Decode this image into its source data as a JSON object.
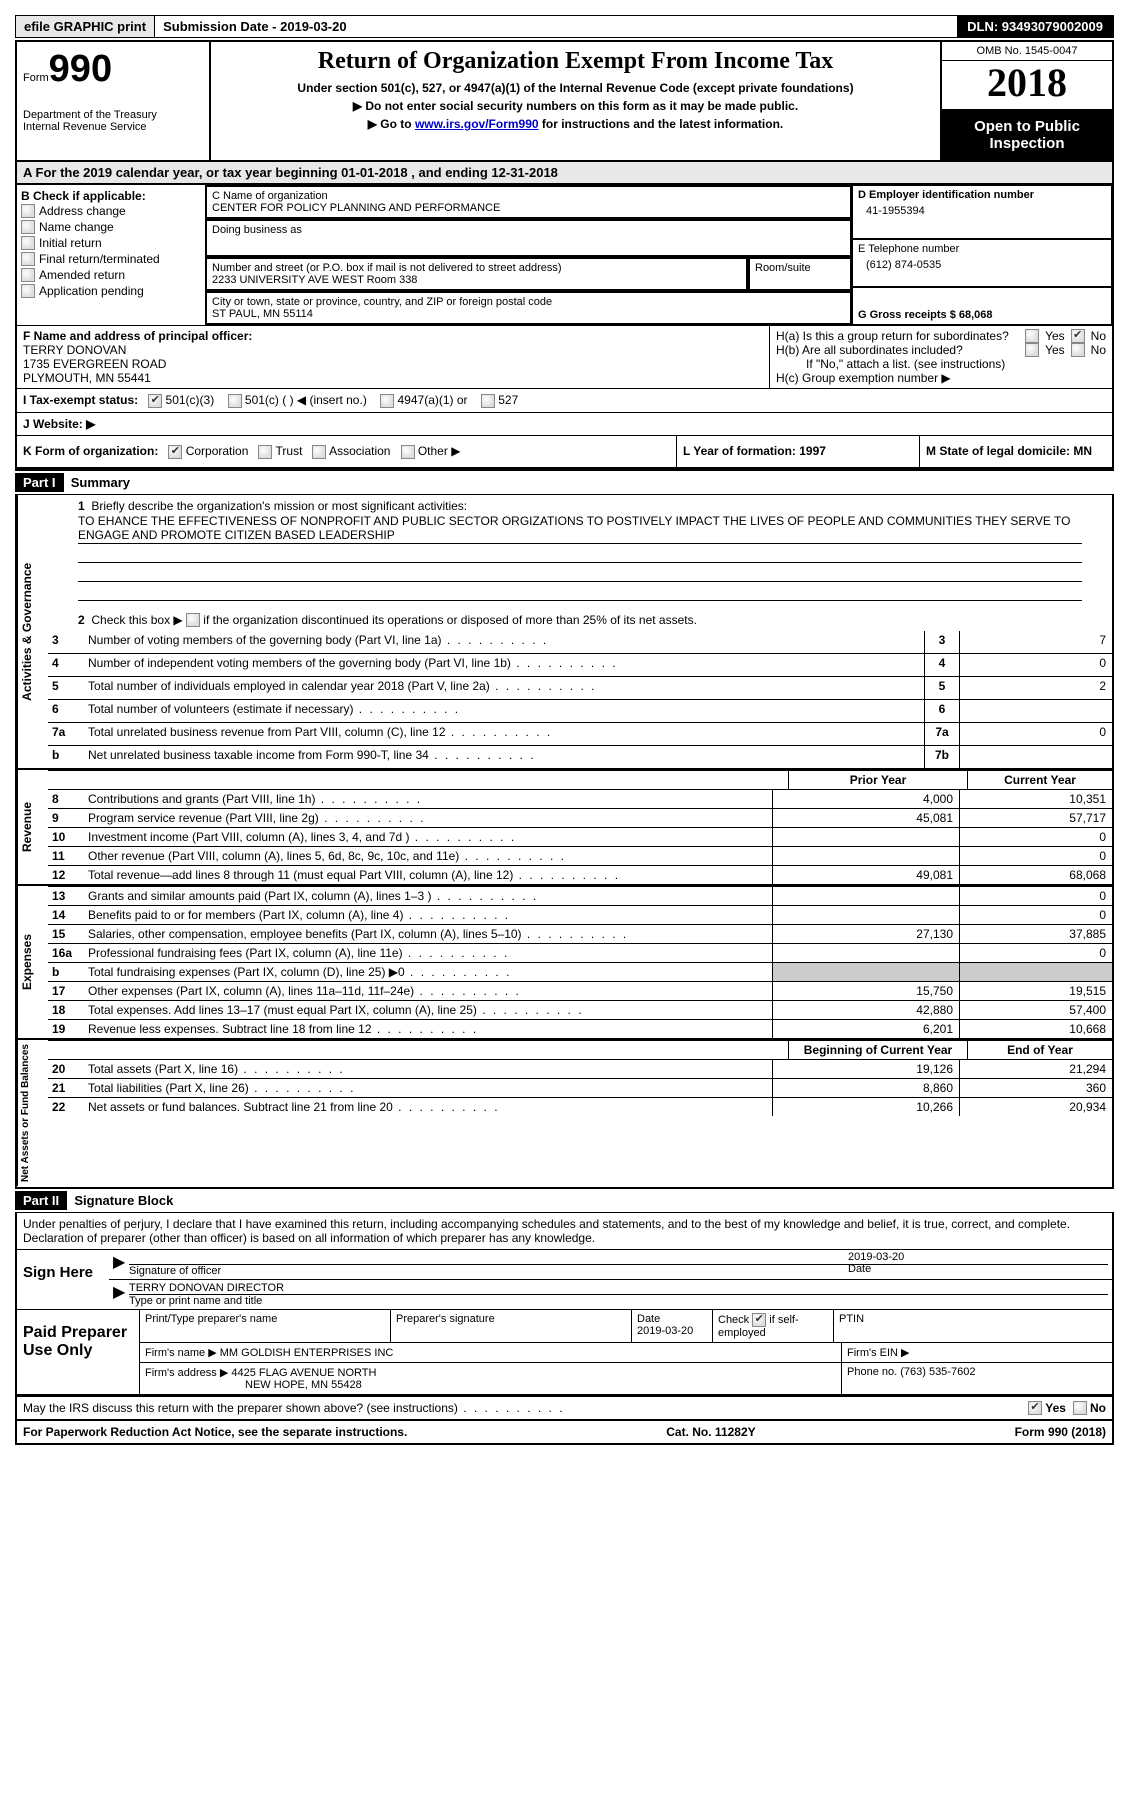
{
  "topbar": {
    "efile": "efile GRAPHIC print",
    "submission_label": "Submission Date - 2019-03-20",
    "dln_label": "DLN: 93493079002009"
  },
  "header": {
    "form_prefix": "Form",
    "form_number": "990",
    "title": "Return of Organization Exempt From Income Tax",
    "subtitle": "Under section 501(c), 527, or 4947(a)(1) of the Internal Revenue Code (except private foundations)",
    "note1": "Do not enter social security numbers on this form as it may be made public.",
    "note2_pre": "Go to ",
    "note2_link": "www.irs.gov/Form990",
    "note2_post": " for instructions and the latest information.",
    "dept1": "Department of the Treasury",
    "dept2": "Internal Revenue Service",
    "omb": "OMB No. 1545-0047",
    "year": "2018",
    "open_public": "Open to Public Inspection"
  },
  "section_a": "A  For the 2019 calendar year, or tax year beginning 01-01-2018   , and ending 12-31-2018",
  "section_b": {
    "title": "B Check if applicable:",
    "items": [
      "Address change",
      "Name change",
      "Initial return",
      "Final return/terminated",
      "Amended return",
      "Application pending"
    ]
  },
  "section_c": {
    "name_label": "C Name of organization",
    "name": "CENTER FOR POLICY PLANNING AND PERFORMANCE",
    "dba_label": "Doing business as",
    "street_label": "Number and street (or P.O. box if mail is not delivered to street address)",
    "room_label": "Room/suite",
    "street": "2233 UNIVERSITY AVE WEST Room 338",
    "city_label": "City or town, state or province, country, and ZIP or foreign postal code",
    "city": "ST PAUL, MN  55114"
  },
  "section_d": {
    "ein_label": "D Employer identification number",
    "ein": "41-1955394",
    "phone_label": "E Telephone number",
    "phone": "(612) 874-0535",
    "gross_label": "G Gross receipts $ 68,068"
  },
  "section_f": {
    "label": "F  Name and address of principal officer:",
    "name": "TERRY DONOVAN",
    "addr1": "1735 EVERGREEN ROAD",
    "addr2": "PLYMOUTH, MN  55441"
  },
  "section_h": {
    "ha": "H(a)  Is this a group return for subordinates?",
    "hb": "H(b)  Are all subordinates included?",
    "hb_note": "If \"No,\" attach a list. (see instructions)",
    "hc": "H(c)  Group exemption number ▶",
    "yes": "Yes",
    "no": "No"
  },
  "section_i": {
    "label": "I  Tax-exempt status:",
    "o1": "501(c)(3)",
    "o2": "501(c) (  ) ◀ (insert no.)",
    "o3": "4947(a)(1) or",
    "o4": "527"
  },
  "section_j": "J  Website: ▶",
  "section_k": {
    "label": "K Form of organization:",
    "o1": "Corporation",
    "o2": "Trust",
    "o3": "Association",
    "o4": "Other ▶"
  },
  "section_l": "L Year of formation: 1997",
  "section_m": "M State of legal domicile: MN",
  "part1": {
    "header": "Part I",
    "title": "Summary",
    "line1_label": "Briefly describe the organization's mission or most significant activities:",
    "mission": "TO EHANCE THE EFFECTIVENESS OF NONPROFIT AND PUBLIC SECTOR ORGIZATIONS TO POSTIVELY IMPACT THE LIVES OF PEOPLE AND COMMUNITIES THEY SERVE TO ENGAGE AND PROMOTE CITIZEN BASED LEADERSHIP",
    "line2": "Check this box ▶     if the organization discontinued its operations or disposed of more than 25% of its net assets.",
    "tabs": {
      "gov": "Activities & Governance",
      "rev": "Revenue",
      "exp": "Expenses",
      "net": "Net Assets or Fund Balances"
    },
    "rows_gov": [
      {
        "n": "3",
        "label": "Number of voting members of the governing body (Part VI, line 1a)",
        "box": "3",
        "val": "7"
      },
      {
        "n": "4",
        "label": "Number of independent voting members of the governing body (Part VI, line 1b)",
        "box": "4",
        "val": "0"
      },
      {
        "n": "5",
        "label": "Total number of individuals employed in calendar year 2018 (Part V, line 2a)",
        "box": "5",
        "val": "2"
      },
      {
        "n": "6",
        "label": "Total number of volunteers (estimate if necessary)",
        "box": "6",
        "val": ""
      },
      {
        "n": "7a",
        "label": "Total unrelated business revenue from Part VIII, column (C), line 12",
        "box": "7a",
        "val": "0"
      },
      {
        "n": "b",
        "label": "Net unrelated business taxable income from Form 990-T, line 34",
        "box": "7b",
        "val": ""
      }
    ],
    "prior_year": "Prior Year",
    "current_year": "Current Year",
    "rows_rev": [
      {
        "n": "8",
        "label": "Contributions and grants (Part VIII, line 1h)",
        "py": "4,000",
        "cy": "10,351"
      },
      {
        "n": "9",
        "label": "Program service revenue (Part VIII, line 2g)",
        "py": "45,081",
        "cy": "57,717"
      },
      {
        "n": "10",
        "label": "Investment income (Part VIII, column (A), lines 3, 4, and 7d )",
        "py": "",
        "cy": "0"
      },
      {
        "n": "11",
        "label": "Other revenue (Part VIII, column (A), lines 5, 6d, 8c, 9c, 10c, and 11e)",
        "py": "",
        "cy": "0"
      },
      {
        "n": "12",
        "label": "Total revenue—add lines 8 through 11 (must equal Part VIII, column (A), line 12)",
        "py": "49,081",
        "cy": "68,068"
      }
    ],
    "rows_exp": [
      {
        "n": "13",
        "label": "Grants and similar amounts paid (Part IX, column (A), lines 1–3 )",
        "py": "",
        "cy": "0"
      },
      {
        "n": "14",
        "label": "Benefits paid to or for members (Part IX, column (A), line 4)",
        "py": "",
        "cy": "0"
      },
      {
        "n": "15",
        "label": "Salaries, other compensation, employee benefits (Part IX, column (A), lines 5–10)",
        "py": "27,130",
        "cy": "37,885"
      },
      {
        "n": "16a",
        "label": "Professional fundraising fees (Part IX, column (A), line 11e)",
        "py": "",
        "cy": "0"
      },
      {
        "n": "b",
        "label": "Total fundraising expenses (Part IX, column (D), line 25) ▶0",
        "py": "SHADE",
        "cy": "SHADE"
      },
      {
        "n": "17",
        "label": "Other expenses (Part IX, column (A), lines 11a–11d, 11f–24e)",
        "py": "15,750",
        "cy": "19,515"
      },
      {
        "n": "18",
        "label": "Total expenses. Add lines 13–17 (must equal Part IX, column (A), line 25)",
        "py": "42,880",
        "cy": "57,400"
      },
      {
        "n": "19",
        "label": "Revenue less expenses. Subtract line 18 from line 12",
        "py": "6,201",
        "cy": "10,668"
      }
    ],
    "begin_year": "Beginning of Current Year",
    "end_year": "End of Year",
    "rows_net": [
      {
        "n": "20",
        "label": "Total assets (Part X, line 16)",
        "py": "19,126",
        "cy": "21,294"
      },
      {
        "n": "21",
        "label": "Total liabilities (Part X, line 26)",
        "py": "8,860",
        "cy": "360"
      },
      {
        "n": "22",
        "label": "Net assets or fund balances. Subtract line 21 from line 20",
        "py": "10,266",
        "cy": "20,934"
      }
    ]
  },
  "part2": {
    "header": "Part II",
    "title": "Signature Block",
    "declare": "Under penalties of perjury, I declare that I have examined this return, including accompanying schedules and statements, and to the best of my knowledge and belief, it is true, correct, and complete. Declaration of preparer (other than officer) is based on all information of which preparer has any knowledge.",
    "sign_here": "Sign Here",
    "sig_officer": "Signature of officer",
    "date_label": "Date",
    "date": "2019-03-20",
    "officer_name": "TERRY DONOVAN  DIRECTOR",
    "type_name": "Type or print name and title",
    "paid_prep": "Paid Preparer Use Only",
    "prep_name_label": "Print/Type preparer's name",
    "prep_sig_label": "Preparer's signature",
    "prep_date": "2019-03-20",
    "check_self": "Check        if self-employed",
    "ptin": "PTIN",
    "firm_name_label": "Firm's name     ▶",
    "firm_name": "MM GOLDISH ENTERPRISES INC",
    "firm_ein_label": "Firm's EIN ▶",
    "firm_addr_label": "Firm's address ▶",
    "firm_addr": "4425 FLAG AVENUE NORTH",
    "firm_city": "NEW HOPE, MN  55428",
    "firm_phone_label": "Phone no. (763) 535-7602",
    "discuss": "May the IRS discuss this return with the preparer shown above? (see instructions)",
    "yes": "Yes",
    "no": "No"
  },
  "footer": {
    "pra": "For Paperwork Reduction Act Notice, see the separate instructions.",
    "cat": "Cat. No. 11282Y",
    "form": "Form 990 (2018)"
  }
}
